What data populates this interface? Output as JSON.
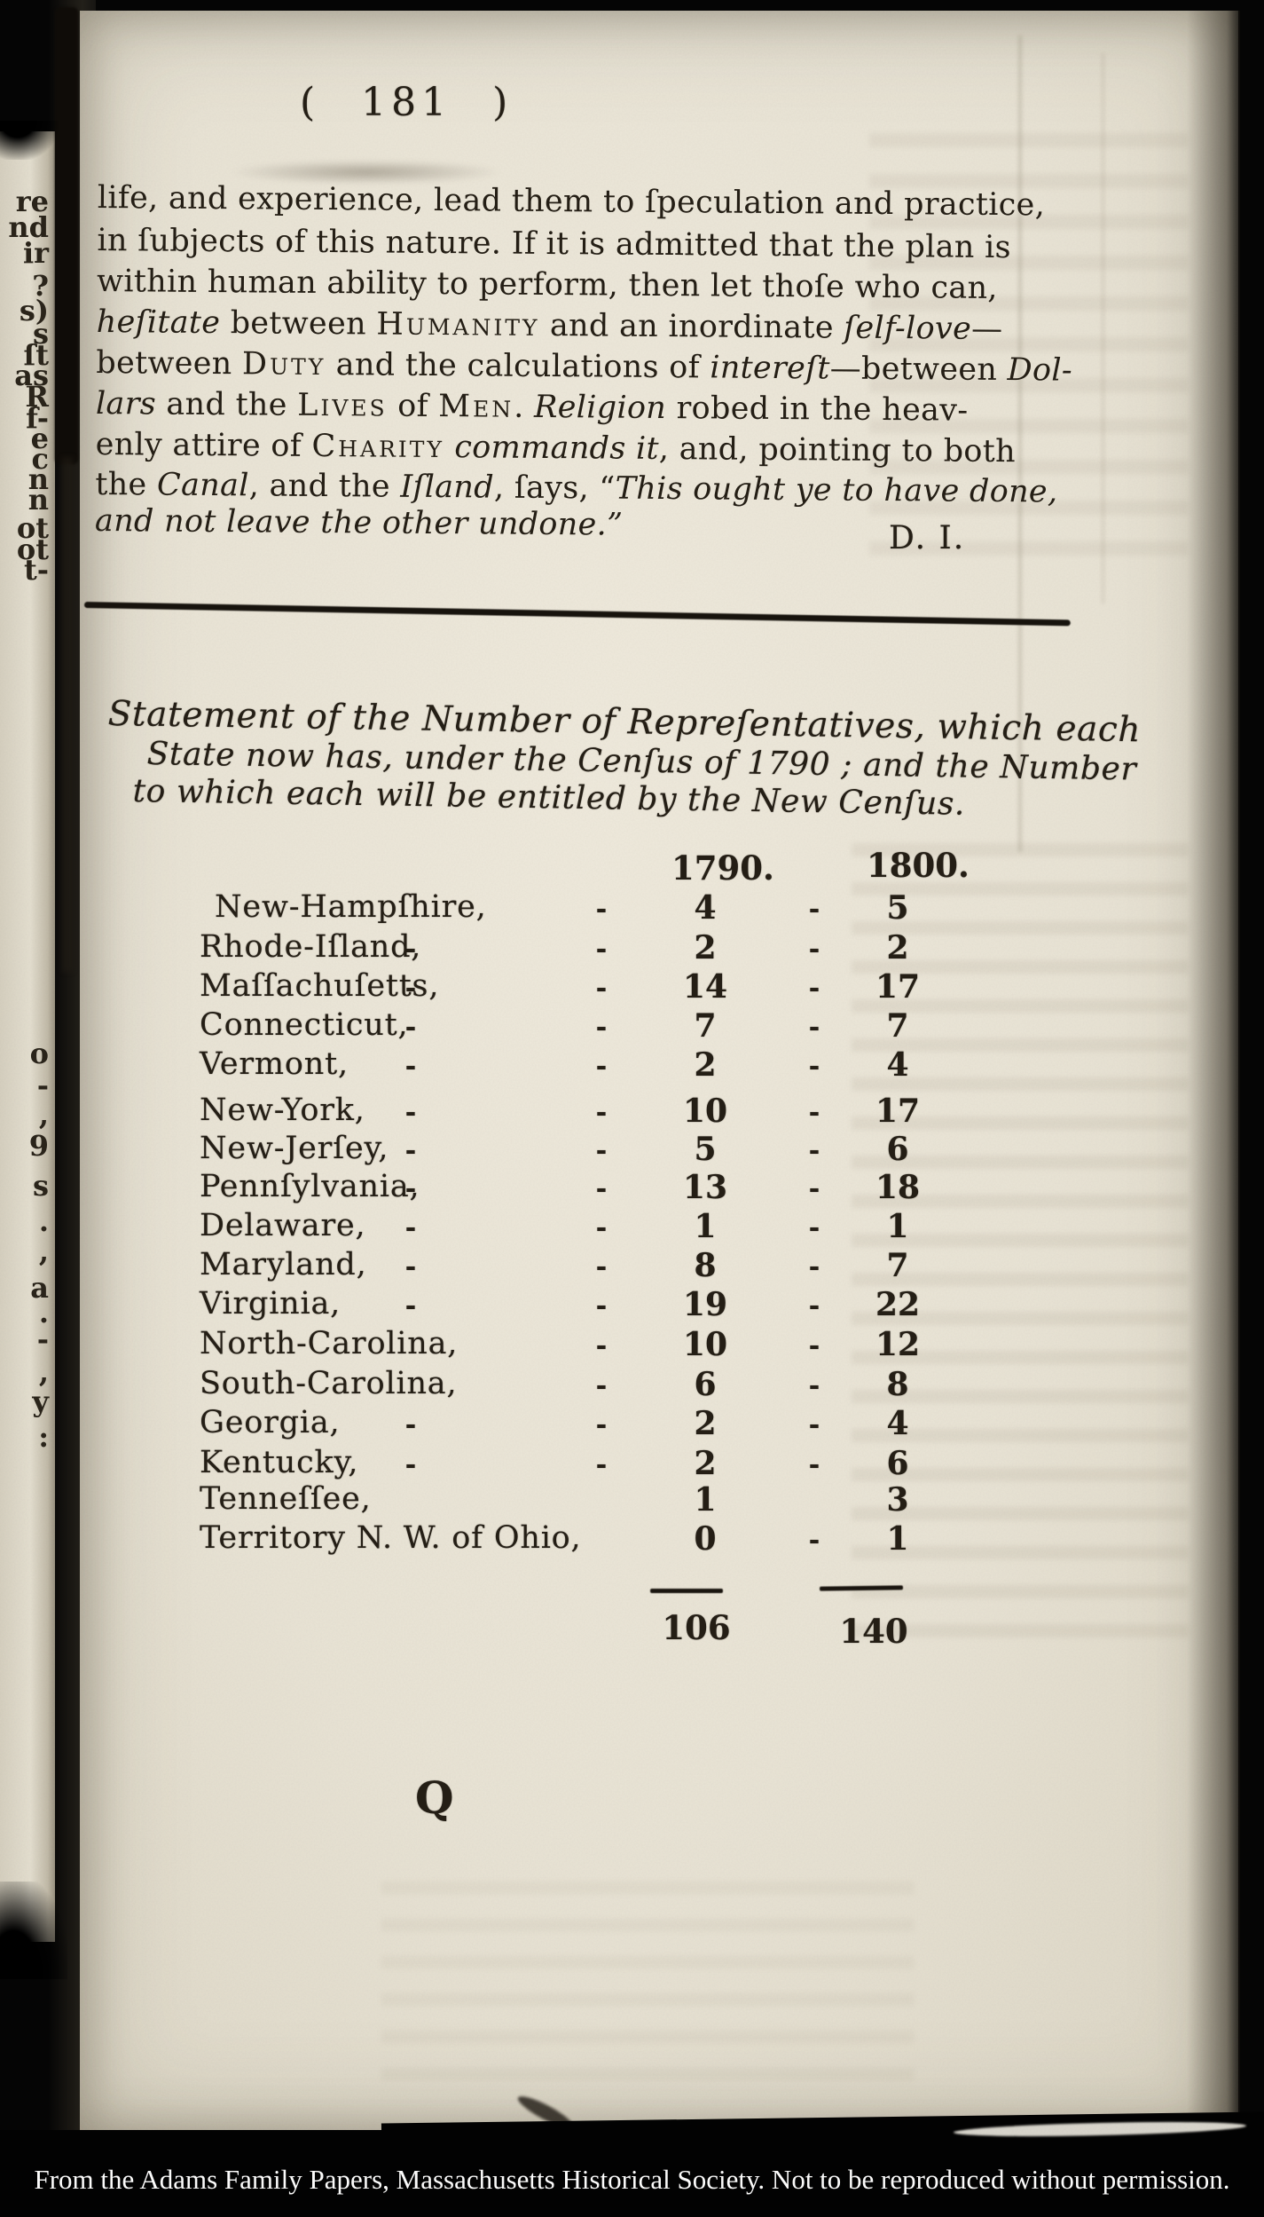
{
  "page": {
    "page_number": "( 181 )",
    "attribution": "D. I.",
    "catchword": "Q",
    "paragraph_lines": [
      [
        {
          "c": "n",
          "t": "life, and experience, lead them to ſpeculation and practice,"
        }
      ],
      [
        {
          "c": "n",
          "t": "in ſubjects of this nature.  If it is admitted that the plan is"
        }
      ],
      [
        {
          "c": "n",
          "t": "within human ability to perform, then let thoſe who can,"
        }
      ],
      [
        {
          "c": "i",
          "t": "heſitate"
        },
        {
          "c": "n",
          "t": " between "
        },
        {
          "c": "sc",
          "t": "Humanity"
        },
        {
          "c": "n",
          "t": " and an inordinate "
        },
        {
          "c": "i",
          "t": "ſelf-love"
        },
        {
          "c": "n",
          "t": "—"
        }
      ],
      [
        {
          "c": "n",
          "t": "between "
        },
        {
          "c": "sc",
          "t": "Duty"
        },
        {
          "c": "n",
          "t": " and the calculations of "
        },
        {
          "c": "i",
          "t": "intereſt"
        },
        {
          "c": "n",
          "t": "—between "
        },
        {
          "c": "i",
          "t": "Dol-"
        }
      ],
      [
        {
          "c": "i",
          "t": "lars"
        },
        {
          "c": "n",
          "t": " and the "
        },
        {
          "c": "sc",
          "t": "Lives"
        },
        {
          "c": "n",
          "t": " of "
        },
        {
          "c": "sc",
          "t": "Men"
        },
        {
          "c": "n",
          "t": ".   "
        },
        {
          "c": "i",
          "t": "Religion"
        },
        {
          "c": "n",
          "t": " robed in the heav-"
        }
      ],
      [
        {
          "c": "n",
          "t": "enly attire of "
        },
        {
          "c": "sc",
          "t": "Charity"
        },
        {
          "c": "n",
          "t": " "
        },
        {
          "c": "i",
          "t": "commands it"
        },
        {
          "c": "n",
          "t": ", and, pointing to both"
        }
      ],
      [
        {
          "c": "n",
          "t": "the "
        },
        {
          "c": "i",
          "t": "Canal"
        },
        {
          "c": "n",
          "t": ", and the "
        },
        {
          "c": "i",
          "t": "Iſland"
        },
        {
          "c": "n",
          "t": ", ſays, “"
        },
        {
          "c": "i",
          "t": "This ought ye to have done,"
        }
      ],
      [
        {
          "c": "i",
          "t": "and not leave the other undone.”"
        }
      ]
    ],
    "margin_fragments": [
      "re",
      "nd",
      "ir",
      "?",
      "s)",
      "s",
      "ſt",
      "as",
      "R",
      "f-",
      "e",
      "c",
      "n",
      "n",
      "ot",
      "ot",
      "t-",
      "o",
      "-",
      ",",
      "9",
      "s",
      ".",
      ",",
      "a",
      ".",
      "-",
      ",",
      "y",
      ":"
    ]
  },
  "heading": {
    "lines": [
      "Statement of the Number of Repreſentatives, which each",
      "State now has, under the Cenſus of 1790 ; and the Number",
      "to which each will be entitled by the New Cenſus."
    ]
  },
  "table": {
    "col_headers": [
      "1790.",
      "1800."
    ],
    "rows": [
      {
        "state": "New-Hampſhire,",
        "d1": "",
        "d2": "-",
        "v1790": "4",
        "d3": "-",
        "v1800": "5"
      },
      {
        "state": "Rhode-Iſland,",
        "d1": "-",
        "d2": "-",
        "v1790": "2",
        "d3": "-",
        "v1800": "2"
      },
      {
        "state": "Maſſachuſetts,",
        "d1": "-",
        "d2": "-",
        "v1790": "14",
        "d3": "-",
        "v1800": "17"
      },
      {
        "state": "Connecticut,",
        "d1": "-",
        "d2": "-",
        "v1790": "7",
        "d3": "-",
        "v1800": "7"
      },
      {
        "state": "Vermont,",
        "d1": "-",
        "d2": "-",
        "v1790": "2",
        "d3": "-",
        "v1800": "4"
      },
      {
        "state": "New-York,",
        "d1": "-",
        "d2": "-",
        "v1790": "10",
        "d3": "-",
        "v1800": "17"
      },
      {
        "state": "New-Jerſey,",
        "d1": "-",
        "d2": "-",
        "v1790": "5",
        "d3": "-",
        "v1800": "6"
      },
      {
        "state": "Pennſylvania,",
        "d1": "-",
        "d2": "-",
        "v1790": "13",
        "d3": "-",
        "v1800": "18"
      },
      {
        "state": "Delaware,",
        "d1": "-",
        "d2": "-",
        "v1790": "1",
        "d3": "-",
        "v1800": "1"
      },
      {
        "state": "Maryland,",
        "d1": "-",
        "d2": "-",
        "v1790": "8",
        "d3": "-",
        "v1800": "7"
      },
      {
        "state": "Virginia,",
        "d1": "-",
        "d2": "-",
        "v1790": "19",
        "d3": "-",
        "v1800": "22"
      },
      {
        "state": "North-Carolina,",
        "d1": "",
        "d2": "-",
        "v1790": "10",
        "d3": "-",
        "v1800": "12"
      },
      {
        "state": "South-Carolina,",
        "d1": "",
        "d2": "-",
        "v1790": "6",
        "d3": "-",
        "v1800": "8"
      },
      {
        "state": "Georgia,",
        "d1": "-",
        "d2": "-",
        "v1790": "2",
        "d3": "-",
        "v1800": "4"
      },
      {
        "state": "Kentucky,",
        "d1": "-",
        "d2": "-",
        "v1790": "2",
        "d3": "-",
        "v1800": "6"
      },
      {
        "state": "Tenneſſee,",
        "d1": "",
        "d2": "",
        "v1790": "1",
        "d3": "",
        "v1800": "3"
      },
      {
        "state": "Territory N. W. of Ohio,",
        "d1": "",
        "d2": "",
        "v1790": "0",
        "d3": "-",
        "v1800": "1"
      }
    ],
    "totals": {
      "v1790": "106",
      "v1800": "140"
    }
  },
  "footer": {
    "credit": "From the Adams Family Papers, Massachusetts Historical Society. Not to be reproduced without permission."
  },
  "colors": {
    "paper": "#e9e4d6",
    "ink": "#241e15",
    "footer_bg": "#020202",
    "footer_text": "#ffffff"
  }
}
